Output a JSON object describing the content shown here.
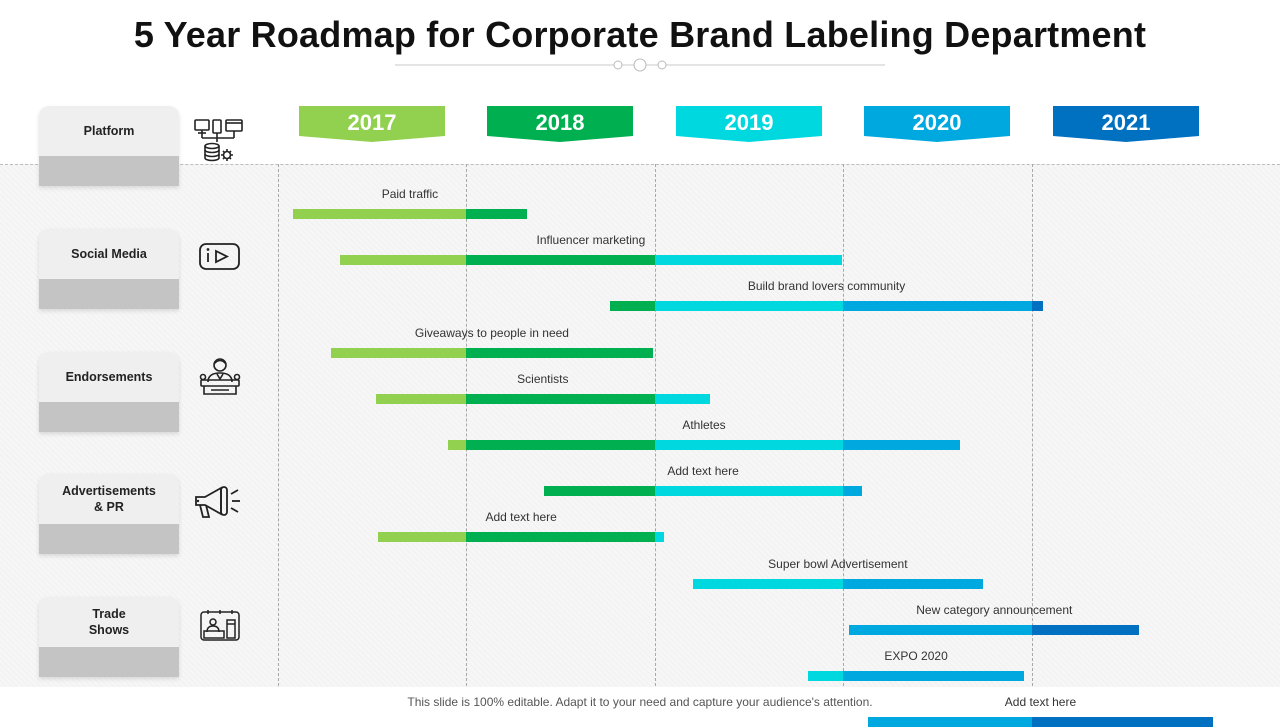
{
  "title": "5 Year Roadmap for Corporate Brand Labeling Department",
  "footer": "This slide is 100% editable. Adapt it to your need and capture your audience's attention.",
  "colors": {
    "2017": "#92d050",
    "2018": "#00b050",
    "2019": "#00d8e0",
    "2020": "#00a8e0",
    "2021": "#0070c0"
  },
  "years": [
    "2017",
    "2018",
    "2019",
    "2020",
    "2021"
  ],
  "categories": [
    {
      "label": "Platform",
      "icon": "computer-network-database-icon"
    },
    {
      "label": "Social Media",
      "icon": "video-play-icon"
    },
    {
      "label": "Endorsements",
      "icon": "news-anchor-person-icon"
    },
    {
      "label": "Advertisements\n& PR",
      "icon": "megaphone-icon"
    },
    {
      "label": "Trade\nShows",
      "icon": "trade-show-booth-icon"
    }
  ],
  "tasks": [
    {
      "label": "Paid traffic",
      "start": 2017.08,
      "end": 2018.32
    },
    {
      "label": "Influencer marketing",
      "start": 2017.33,
      "end": 2019.99
    },
    {
      "label": "Build brand lovers community",
      "start": 2018.76,
      "end": 2021.06
    },
    {
      "label": "Giveaways to people in need",
      "start": 2017.28,
      "end": 2018.99
    },
    {
      "label": "Scientists",
      "start": 2017.52,
      "end": 2019.29
    },
    {
      "label": "Athletes",
      "start": 2017.9,
      "end": 2020.62
    },
    {
      "label": "Add text here",
      "start": 2018.41,
      "end": 2020.1
    },
    {
      "label": "Add text here",
      "start": 2017.53,
      "end": 2019.05
    },
    {
      "label": "Super bowl Advertisement",
      "start": 2019.2,
      "end": 2020.74
    },
    {
      "label": "New category announcement",
      "start": 2020.03,
      "end": 2021.57
    },
    {
      "label": "EXPO 2020",
      "start": 2019.81,
      "end": 2020.96
    },
    {
      "label": "Add text here",
      "start": 2020.13,
      "end": 2021.96
    }
  ]
}
